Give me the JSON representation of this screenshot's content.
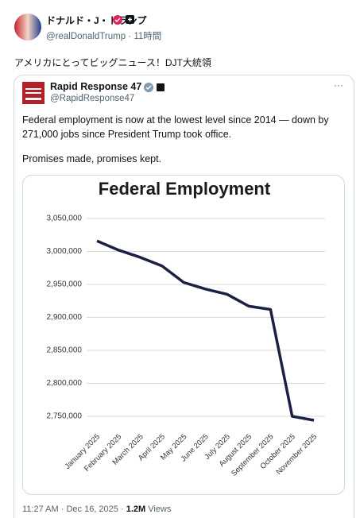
{
  "post": {
    "author": "ドナルド・J・トランプ",
    "handle": "@realDonaldTrump",
    "separator": "·",
    "time": "11時間",
    "text": "アメリカにとってビッグニュース！DJT大統領"
  },
  "quote": {
    "author": "Rapid Response 47",
    "handle": "@RapidResponse47",
    "menu": "···",
    "text_lines": [
      "Federal employment is now at the lowest level since 2014 — down by",
      "271,000 jobs since President Trump took office."
    ],
    "text2": "Promises made, promises kept."
  },
  "chart_data": {
    "type": "line",
    "title": "Federal Employment",
    "categories": [
      "January 2025",
      "February 2025",
      "March 2025",
      "April 2025",
      "May 2025",
      "June 2025",
      "July 2025",
      "August 2025",
      "September 2025",
      "October 2025",
      "November 2025"
    ],
    "series": [
      {
        "name": "Federal employment",
        "color": "#1c2143",
        "values": [
          3016000,
          3002000,
          2991000,
          2978000,
          2953000,
          2943000,
          2935000,
          2917000,
          2912000,
          2750000,
          2744000
        ]
      }
    ],
    "ylim": [
      2735000,
      3060000
    ],
    "yticks": [
      {
        "value": 2750000,
        "label": "2,750,000"
      },
      {
        "value": 2800000,
        "label": "2,800,000"
      },
      {
        "value": 2850000,
        "label": "2,850,000"
      },
      {
        "value": 2900000,
        "label": "2,900,000"
      },
      {
        "value": 2950000,
        "label": "2,950,000"
      },
      {
        "value": 3000000,
        "label": "3,000,000"
      },
      {
        "value": 3050000,
        "label": "3,050,000"
      }
    ],
    "grid": true
  },
  "footer": {
    "time": "11:27 AM",
    "date": "Dec 16, 2025",
    "views": "1.2M",
    "views_label": "Views"
  }
}
